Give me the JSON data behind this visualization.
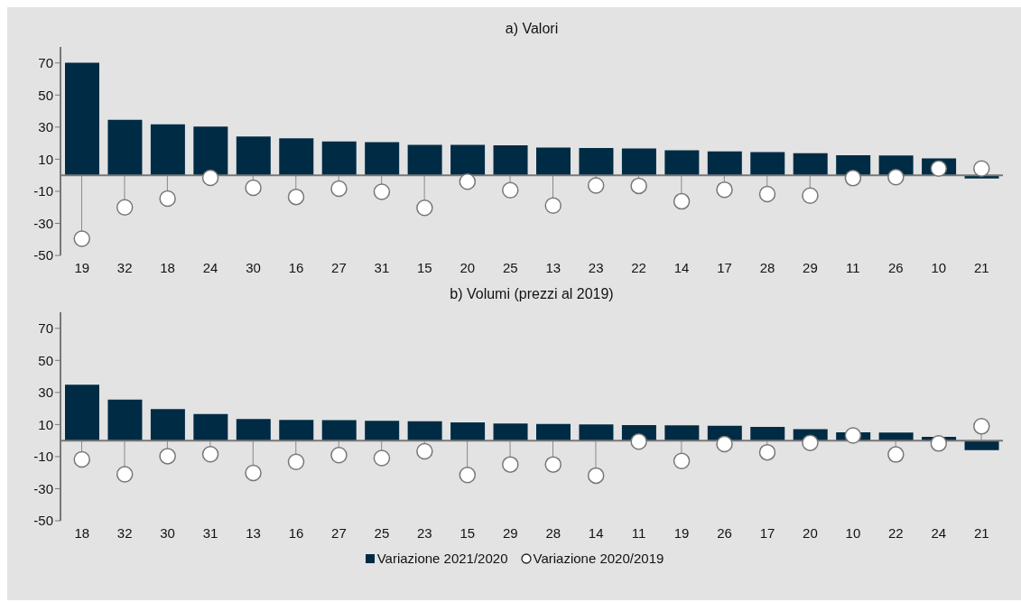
{
  "chart_data": [
    {
      "type": "bar",
      "title": "a) Valori",
      "categories": [
        "19",
        "32",
        "18",
        "24",
        "30",
        "16",
        "27",
        "31",
        "15",
        "20",
        "25",
        "13",
        "23",
        "22",
        "14",
        "17",
        "28",
        "29",
        "11",
        "26",
        "10",
        "21"
      ],
      "series": [
        {
          "color": "#002b45",
          "values": [
            70.2,
            34.5,
            31.7,
            30.3,
            24.1,
            23,
            21,
            20.6,
            19,
            19,
            18.7,
            17.3,
            16.9,
            16.7,
            15.5,
            14.9,
            14.5,
            13.7,
            12.5,
            12.3,
            10.5,
            -2
          ]
        },
        {
          "type": "lollipop",
          "color": "#ffffff",
          "values": [
            -39.6,
            -20,
            -14.5,
            -1.6,
            -7.8,
            -13.5,
            -8.4,
            -10.3,
            -20.3,
            -4,
            -9.3,
            -18.9,
            -6.4,
            -6.6,
            -16.3,
            -9,
            -11.7,
            -12.7,
            -1.8,
            -1.2,
            4.2,
            4.2
          ]
        }
      ],
      "ylim": [
        -50,
        80
      ],
      "yticks": [
        -50,
        -30,
        -10,
        10,
        30,
        50,
        70
      ],
      "grid": false,
      "legend": false,
      "marker": "circle"
    },
    {
      "type": "bar",
      "title": "b) Volumi (prezzi al 2019)",
      "categories": [
        "18",
        "32",
        "30",
        "31",
        "13",
        "16",
        "27",
        "25",
        "23",
        "15",
        "29",
        "28",
        "14",
        "11",
        "19",
        "26",
        "17",
        "20",
        "10",
        "22",
        "24",
        "21"
      ],
      "series": [
        {
          "name": "Variazione 2021/2020",
          "color": "#002b45",
          "values": [
            34.9,
            25.5,
            19.6,
            16.6,
            13.5,
            12.9,
            12.7,
            12.3,
            12.1,
            11.3,
            10.7,
            10.3,
            10.1,
            9.7,
            9.5,
            9.3,
            8.5,
            7.1,
            5.1,
            5,
            2.4,
            -5.9
          ]
        },
        {
          "type": "lollipop",
          "name": "Variazione 2020/2019",
          "color": "#ffffff",
          "values": [
            -11.7,
            -21,
            -9.7,
            -8.5,
            -20.2,
            -13.3,
            -9.1,
            -10.9,
            -6.7,
            -21.4,
            -14.9,
            -14.9,
            -21.8,
            -0.6,
            -12.7,
            -2.2,
            -7.3,
            -1.4,
            3.2,
            -8.7,
            -1.8,
            8.9
          ]
        }
      ],
      "ylim": [
        -50,
        80
      ],
      "yticks": [
        -50,
        -30,
        -10,
        10,
        30,
        50,
        70
      ],
      "grid": false,
      "legend": "bottom",
      "marker": "circle"
    }
  ]
}
